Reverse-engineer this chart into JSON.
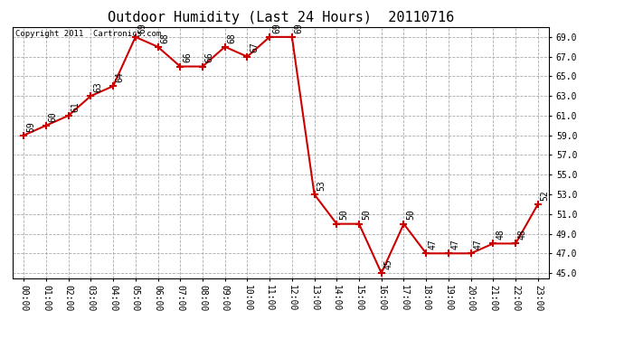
{
  "title": "Outdoor Humidity (Last 24 Hours)  20110716",
  "copyright_text": "Copyright 2011  Cartronics.com",
  "x_labels": [
    "00:00",
    "01:00",
    "02:00",
    "03:00",
    "04:00",
    "05:00",
    "06:00",
    "07:00",
    "08:00",
    "09:00",
    "10:00",
    "11:00",
    "12:00",
    "13:00",
    "14:00",
    "15:00",
    "16:00",
    "17:00",
    "18:00",
    "19:00",
    "20:00",
    "21:00",
    "22:00",
    "23:00"
  ],
  "x_values": [
    0,
    1,
    2,
    3,
    4,
    5,
    6,
    7,
    8,
    9,
    10,
    11,
    12,
    13,
    14,
    15,
    16,
    17,
    18,
    19,
    20,
    21,
    22,
    23
  ],
  "y_values": [
    59,
    60,
    61,
    63,
    64,
    69,
    68,
    66,
    66,
    68,
    67,
    69,
    69,
    53,
    50,
    50,
    45,
    50,
    47,
    47,
    47,
    48,
    48,
    52
  ],
  "ylim_min": 44.5,
  "ylim_max": 70.0,
  "yticks": [
    45.0,
    47.0,
    49.0,
    51.0,
    53.0,
    55.0,
    57.0,
    59.0,
    61.0,
    63.0,
    65.0,
    67.0,
    69.0
  ],
  "line_color": "#cc0000",
  "marker": "+",
  "marker_size": 6,
  "marker_linewidth": 1.5,
  "line_width": 1.5,
  "bg_color": "#ffffff",
  "plot_bg_color": "#ffffff",
  "grid_color": "#aaaaaa",
  "grid_style": "--",
  "title_fontsize": 11,
  "label_fontsize": 7,
  "annotation_fontsize": 7,
  "copyright_fontsize": 6.5
}
